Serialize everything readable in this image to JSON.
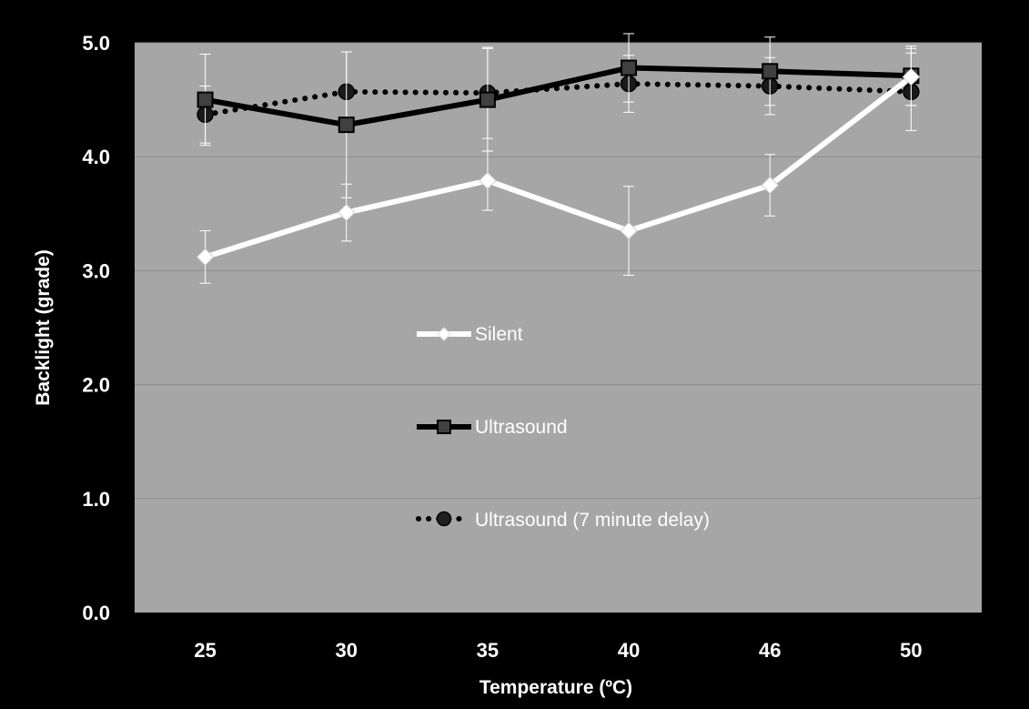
{
  "colors": {
    "background": "#000000",
    "plot_area": "#a6a6a6",
    "gridline": "#8c8c8c",
    "text": "#ffffff",
    "error_bar": "#ffffff"
  },
  "chart_data": {
    "type": "line",
    "categories": [
      "25",
      "30",
      "35",
      "40",
      "46",
      "50"
    ],
    "xlabel": "Temperature (ºC)",
    "ylabel": "Backlight (grade)",
    "ylim": [
      0,
      5
    ],
    "yticks": [
      "0.0",
      "1.0",
      "2.0",
      "3.0",
      "4.0",
      "5.0"
    ],
    "grid": true,
    "legend_position": "center",
    "series": [
      {
        "name": "Silent",
        "values": [
          3.12,
          3.51,
          3.79,
          3.35,
          3.75,
          4.7
        ],
        "error": [
          0.23,
          0.25,
          0.26,
          0.39,
          0.27,
          0.25
        ],
        "color": "#ffffff",
        "style": "solid",
        "marker": "diamond"
      },
      {
        "name": "Ultrasound",
        "values": [
          4.5,
          4.28,
          4.5,
          4.78,
          4.75,
          4.71
        ],
        "error": [
          0.4,
          0.64,
          0.45,
          0.3,
          0.3,
          0.26
        ],
        "color": "#000000",
        "style": "solid",
        "marker": "square"
      },
      {
        "name": "Ultrasound (7 minute delay)",
        "values": [
          4.37,
          4.57,
          4.56,
          4.64,
          4.62,
          4.57
        ],
        "error": [
          0.25,
          0.35,
          0.4,
          0.25,
          0.25,
          0.34
        ],
        "color": "#000000",
        "style": "dotted",
        "marker": "circle"
      }
    ]
  }
}
